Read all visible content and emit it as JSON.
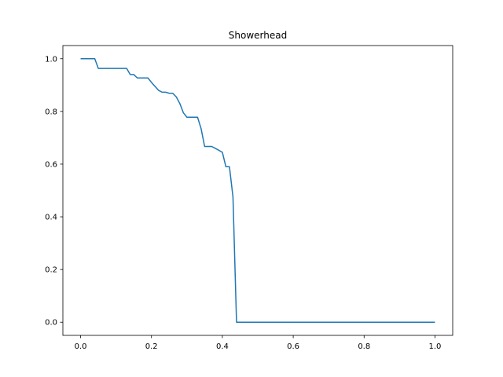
{
  "chart_data": {
    "type": "line",
    "title": "Showerhead",
    "xlabel": "",
    "ylabel": "",
    "xlim": [
      -0.05,
      1.05
    ],
    "ylim": [
      -0.05,
      1.05
    ],
    "x_ticks": [
      0.0,
      0.2,
      0.4,
      0.6,
      0.8,
      1.0
    ],
    "x_tick_labels": [
      "0.0",
      "0.2",
      "0.4",
      "0.6",
      "0.8",
      "1.0"
    ],
    "y_ticks": [
      0.0,
      0.2,
      0.4,
      0.6,
      0.8,
      1.0
    ],
    "y_tick_labels": [
      "0.0",
      "0.2",
      "0.4",
      "0.6",
      "0.8",
      "1.0"
    ],
    "grid": false,
    "series": [
      {
        "color": "#1f77b4",
        "x": [
          0.0,
          0.04,
          0.05,
          0.13,
          0.14,
          0.15,
          0.16,
          0.19,
          0.2,
          0.21,
          0.22,
          0.23,
          0.24,
          0.25,
          0.26,
          0.27,
          0.28,
          0.29,
          0.3,
          0.33,
          0.34,
          0.35,
          0.37,
          0.38,
          0.4,
          0.41,
          0.42,
          0.43,
          0.44,
          0.46,
          1.0
        ],
        "y": [
          1.0,
          1.0,
          0.963,
          0.963,
          0.94,
          0.94,
          0.927,
          0.927,
          0.91,
          0.895,
          0.88,
          0.873,
          0.873,
          0.869,
          0.869,
          0.855,
          0.83,
          0.795,
          0.778,
          0.778,
          0.735,
          0.667,
          0.667,
          0.66,
          0.645,
          0.59,
          0.59,
          0.475,
          0.0,
          0.0,
          0.0
        ]
      }
    ]
  }
}
